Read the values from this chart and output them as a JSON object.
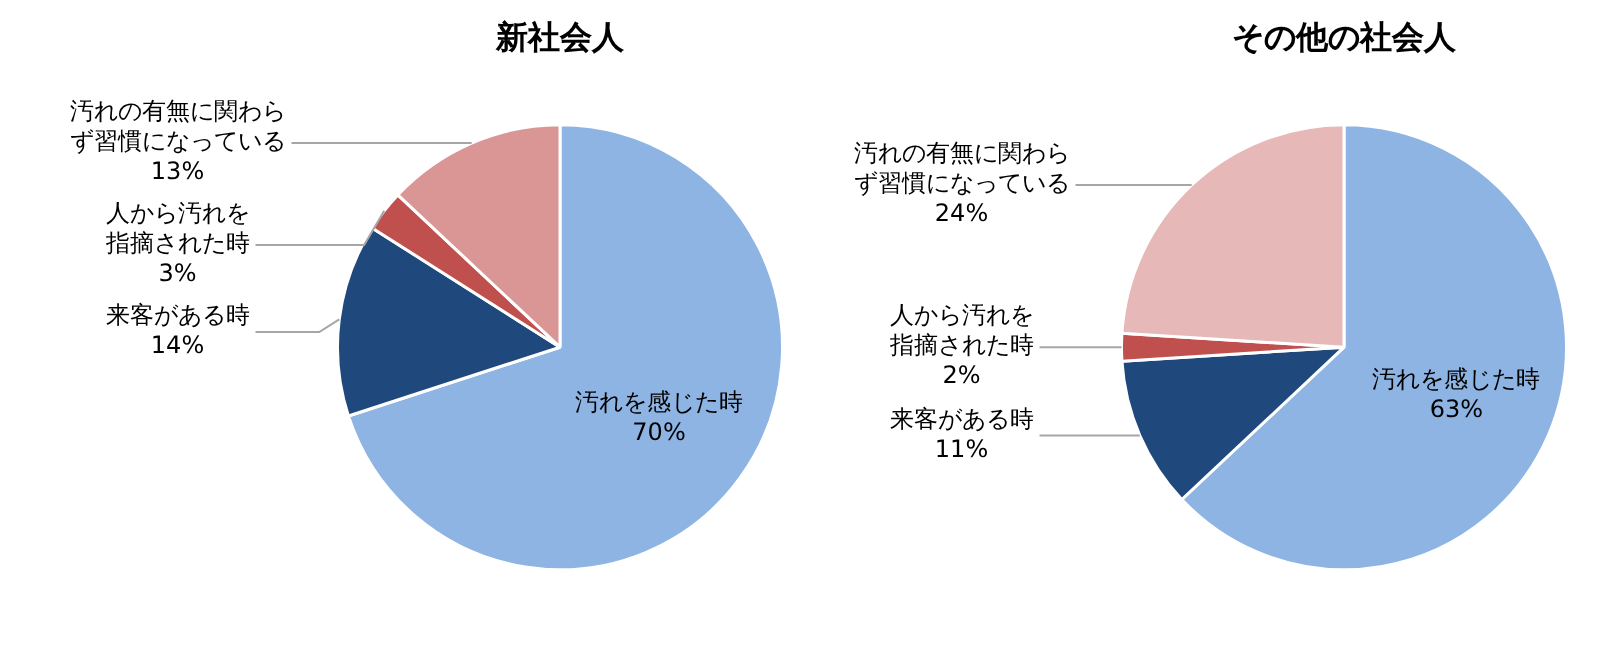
{
  "chart_data": [
    {
      "type": "pie",
      "title": "新社会人",
      "categories": [
        "汚れを感じた時",
        "来客がある時",
        "人から汚れを指摘された時",
        "汚れの有無に関わらず習慣になっている"
      ],
      "values": [
        70,
        14,
        3,
        13
      ],
      "colors": [
        "#8eb4e3",
        "#1f497d",
        "#c0504d",
        "#d99694"
      ],
      "value_labels": [
        "70%",
        "14%",
        "3%",
        "13%"
      ]
    },
    {
      "type": "pie",
      "title": "その他の社会人",
      "categories": [
        "汚れを感じた時",
        "来客がある時",
        "人から汚れを指摘された時",
        "汚れの有無に関わらず習慣になっている"
      ],
      "values": [
        63,
        11,
        2,
        24
      ],
      "colors": [
        "#8eb4e3",
        "#1f497d",
        "#c0504d",
        "#e6b9b8"
      ],
      "value_labels": [
        "63%",
        "11%",
        "2%",
        "24%"
      ]
    }
  ]
}
